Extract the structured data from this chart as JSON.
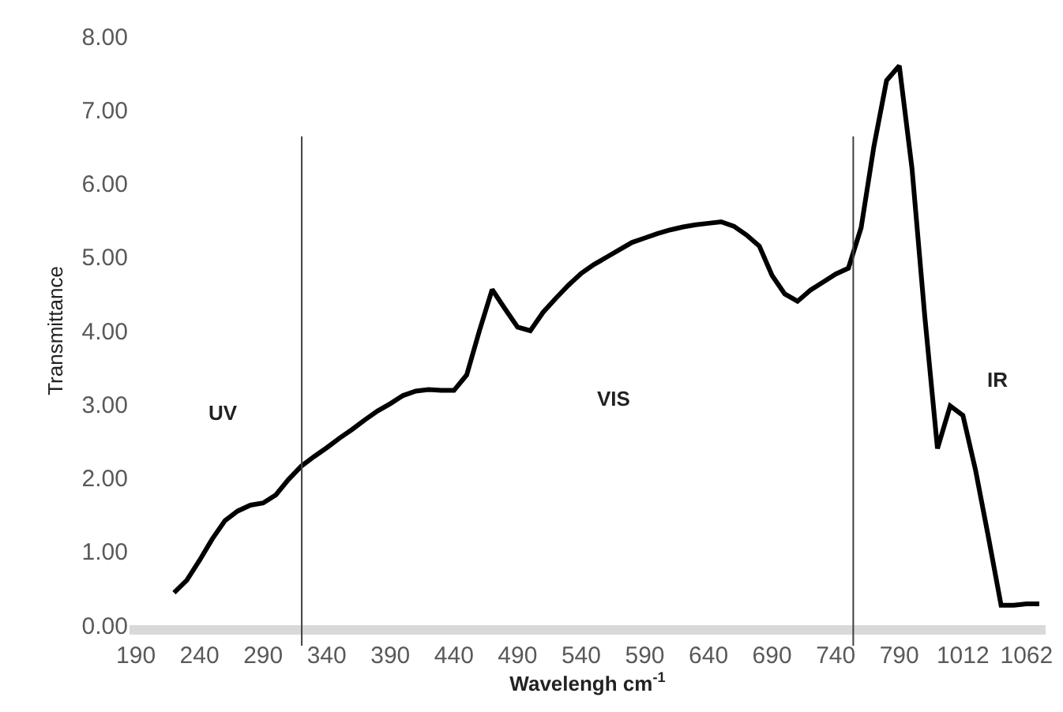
{
  "chart_data": {
    "type": "line",
    "xlabel": "Wavelengh cm$^{-1}$",
    "ylabel": "Transmittance",
    "categories": [
      "190",
      null,
      null,
      null,
      null,
      "240",
      null,
      null,
      null,
      null,
      "290",
      null,
      null,
      null,
      null,
      "340",
      null,
      null,
      null,
      null,
      "390",
      null,
      null,
      null,
      null,
      "440",
      null,
      null,
      null,
      null,
      "490",
      null,
      null,
      null,
      null,
      "540",
      null,
      null,
      null,
      null,
      "590",
      null,
      null,
      null,
      null,
      "640",
      null,
      null,
      null,
      null,
      "690",
      null,
      null,
      null,
      null,
      "740",
      null,
      null,
      null,
      null,
      "790",
      null,
      null,
      null,
      null,
      "1012",
      null,
      null,
      null,
      null,
      "1062",
      null
    ],
    "series": [
      {
        "color": "#000000",
        "values": [
          null,
          null,
          null,
          0.44,
          0.61,
          0.88,
          1.17,
          1.42,
          1.55,
          1.63,
          1.66,
          1.77,
          1.98,
          2.16,
          2.29,
          2.41,
          2.54,
          2.66,
          2.79,
          2.91,
          3.01,
          3.12,
          3.18,
          3.2,
          3.19,
          3.19,
          3.4,
          4.0,
          4.56,
          4.3,
          4.05,
          4.0,
          4.25,
          4.44,
          4.62,
          4.78,
          4.9,
          5.0,
          5.1,
          5.2,
          5.26,
          5.32,
          5.37,
          5.41,
          5.44,
          5.46,
          5.48,
          5.42,
          5.3,
          5.15,
          4.75,
          4.5,
          4.4,
          4.55,
          4.66,
          4.77,
          4.85,
          5.4,
          6.5,
          7.4,
          7.6,
          6.2,
          4.2,
          2.4,
          2.98,
          2.85,
          2.1,
          1.2,
          0.27,
          0.27,
          0.29,
          0.29
        ]
      }
    ],
    "ylim": [
      0,
      8
    ],
    "yticks": [
      {
        "value": 0,
        "label": "0.00"
      },
      {
        "value": 1,
        "label": "1.00"
      },
      {
        "value": 2,
        "label": "2.00"
      },
      {
        "value": 3,
        "label": "3.00"
      },
      {
        "value": 4,
        "label": "4.00"
      },
      {
        "value": 5,
        "label": "5.00"
      },
      {
        "value": 6,
        "label": "6.00"
      },
      {
        "value": 7,
        "label": "7.00"
      },
      {
        "value": 8,
        "label": "8.00"
      }
    ],
    "annotations": [
      "UV",
      "VIS",
      "IR"
    ],
    "grid": false,
    "marker": "none",
    "line_style": "solid"
  }
}
